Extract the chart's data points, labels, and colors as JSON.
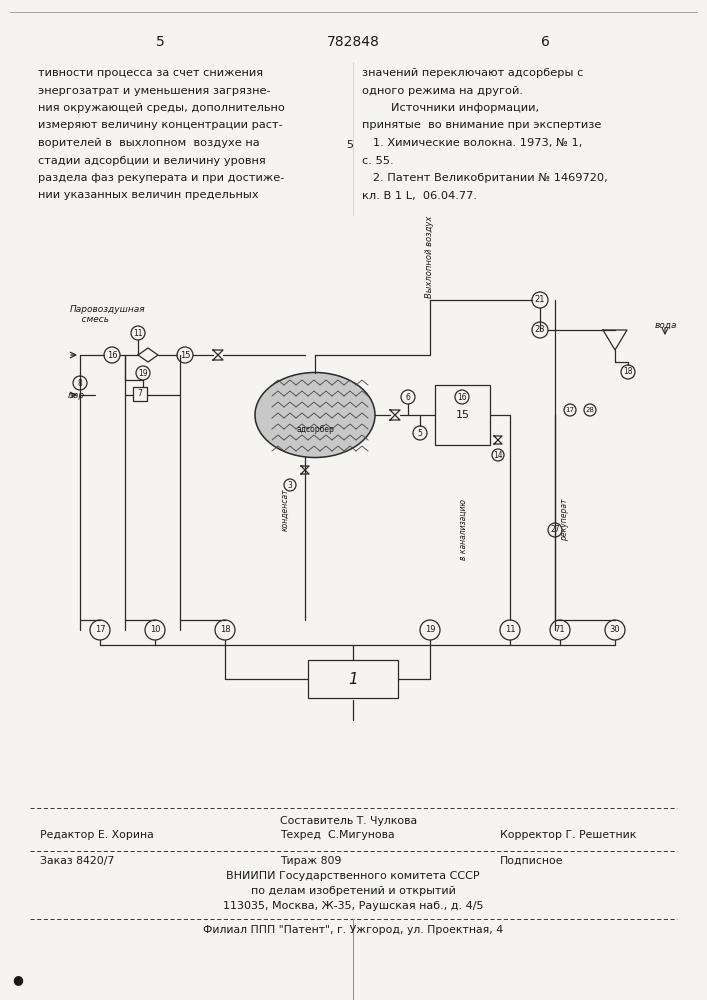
{
  "page_number_left": "5",
  "page_number_center": "782848",
  "page_number_right": "6",
  "left_text": [
    "тивности процесса за счет снижения",
    "энергозатрат и уменьшения загрязне-",
    "ния окружающей среды, дополнительно",
    "измеряют величину концентрации раст-",
    "ворителей в  выхлопном  воздухе на",
    "стадии адсорбции и величину уровня",
    "раздела фаз рекуперата и при достиже-",
    "нии указанных величин предельных"
  ],
  "right_text": [
    "значений переключают адсорберы с",
    "одного режима на другой.",
    "        Источники информации,",
    "принятые  во внимание при экспертизе",
    "   1. Химические волокна. 1973, № 1,",
    "с. 55.",
    "   2. Патент Великобритании № 1469720,",
    "кл. В 1 L,  06.04.77."
  ],
  "editor_line": "Редактор Е. Хорина",
  "composer_line1": "Составитель Т. Чулкова",
  "composer_line2": "Техред  С.Мигунова",
  "corrector_line": "Корректор Г. Решетник",
  "order_line": "Заказ 8420/7",
  "print_line": "Тираж 809",
  "subscription_line": "Подписное",
  "org_line1": "ВНИИПИ Государственного комитета СССР",
  "org_line2": "по делам изобретений и открытий",
  "org_line3": "113035, Москва, Ж-35, Раушская наб., д. 4/5",
  "branch_line": "Филиал ППП \"Патент\", г. Ужгород, ул. Проектная, 4",
  "bg_color": "#f5f4f0",
  "text_color": "#1a1a1a",
  "line_color": "#2a2a2a"
}
